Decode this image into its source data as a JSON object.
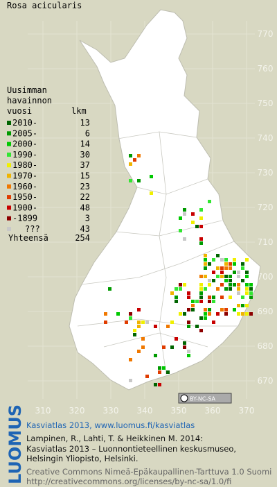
{
  "title": "Rosa acicularis",
  "legend": {
    "heading": [
      "Uusimman",
      "havainnon",
      "vuosi"
    ],
    "count_heading": "lkm",
    "rows": [
      {
        "label": "2010-",
        "count": 13,
        "color": "#006400"
      },
      {
        "label": "2005-",
        "count": 6,
        "color": "#009a00"
      },
      {
        "label": "2000-",
        "count": 14,
        "color": "#00c800"
      },
      {
        "label": "1990-",
        "count": 30,
        "color": "#32e632"
      },
      {
        "label": "1980-",
        "count": 37,
        "color": "#f0f000"
      },
      {
        "label": "1970-",
        "count": 15,
        "color": "#f0b400"
      },
      {
        "label": "1960-",
        "count": 23,
        "color": "#f07800"
      },
      {
        "label": "1950-",
        "count": 22,
        "color": "#e03c00"
      },
      {
        "label": "1900-",
        "count": 48,
        "color": "#c80000"
      },
      {
        "label": "-1899",
        "count": 3,
        "color": "#8c0000"
      },
      {
        "label": "???",
        "count": 43,
        "color": "#c8c8c8"
      }
    ],
    "total_label": "Yhteensä",
    "total": 254
  },
  "grid": {
    "xticks": [
      310,
      320,
      330,
      340,
      350,
      360,
      370
    ],
    "yticks": [
      670,
      680,
      690,
      700,
      710,
      720,
      730,
      740,
      750,
      760,
      770
    ]
  },
  "license_badge": "BY-NC-SA",
  "footer": {
    "logo": "LUOMUS",
    "link": "Kasviatlas 2013, www.luomus.fi/kasviatlas",
    "citation": [
      "Lampinen, R., Lahti, T. & Heikkinen M. 2014:",
      "Kasviatlas 2013 – Luonnontieteellinen keskusmuseo,",
      "Helsingin Yliopisto, Helsinki."
    ],
    "license": [
      "Creative Commons Nimeä-Epäkaupallinen-Tarttuva 1.0 Suomi",
      "http://creativecommons.org/licenses/by-nc-sa/1.0/fi"
    ]
  }
}
